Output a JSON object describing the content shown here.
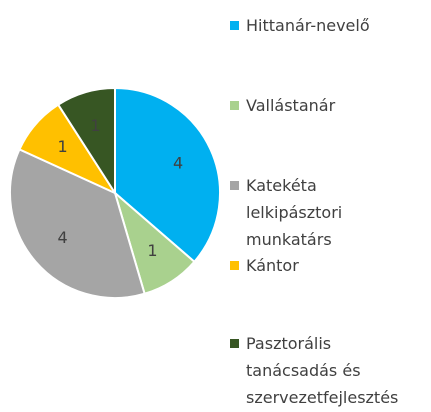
{
  "chart_data": {
    "type": "pie",
    "categories": [
      "Hittanár-nevelő",
      "Vallástanár",
      "Katekéta lelkipásztori munkatárs",
      "Kántor",
      "Pasztorális tanácsadás és szervezetfejlesztés"
    ],
    "values": [
      4,
      1,
      4,
      1,
      1
    ],
    "colors": [
      "#00b0f0",
      "#a9d18e",
      "#a5a5a5",
      "#ffc000",
      "#375623"
    ],
    "legend": "right"
  }
}
